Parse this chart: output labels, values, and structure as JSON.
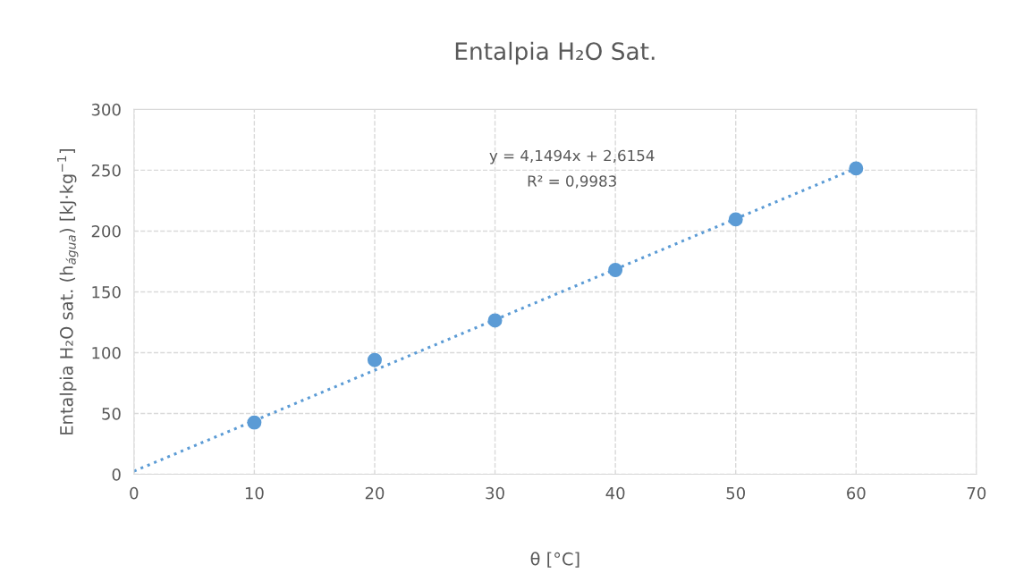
{
  "chart_data": {
    "type": "scatter",
    "title": "Entalpia H₂O Sat.",
    "xlabel": "θ [°C]",
    "ylabel": "Entalpia H₂O sat. (h$_{água}$) [kJ·kg$^{−1}$]",
    "series": [
      {
        "color": "#5b9bd5",
        "marker": "circle",
        "x": [
          10,
          20,
          30,
          40,
          50,
          60
        ],
        "values": [
          42.6,
          94,
          126.5,
          168,
          209.6,
          251.5
        ]
      },
      {
        "type": "line",
        "color": "#5b9bd5",
        "line_style": "dotted",
        "marker": "none",
        "x": [
          0,
          60
        ],
        "values": [
          2.6,
          251.6
        ]
      }
    ],
    "annotations": [
      "y = 4,1494x + 2,6154",
      "R² = 0,9983"
    ],
    "xlim": [
      0,
      70
    ],
    "xticks": [
      0,
      10,
      20,
      30,
      40,
      50,
      60,
      70
    ],
    "ylim": [
      0,
      300
    ],
    "yticks": [
      0,
      50,
      100,
      150,
      200,
      250,
      300
    ],
    "grid": true
  }
}
